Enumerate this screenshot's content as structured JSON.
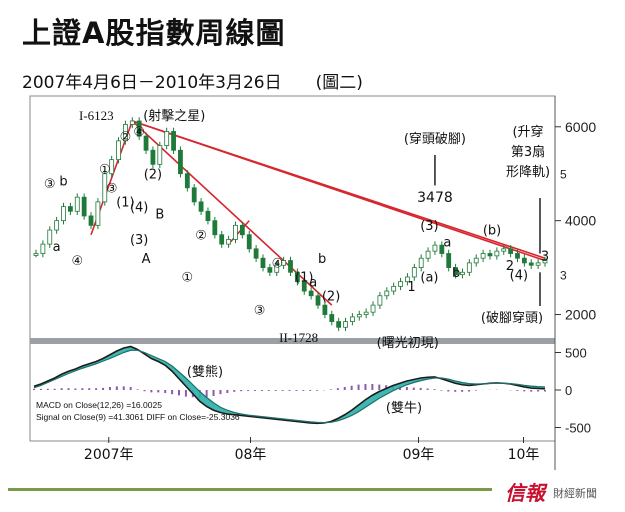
{
  "title": "上證A股指數周線圖",
  "subtitle": "2007年4月6日－2010年3月26日　　(圖二)",
  "brand": {
    "name": "信報",
    "sub": "財經新聞"
  },
  "colors": {
    "candle_up": "#1f7a3a",
    "trend_line": "#d6262e",
    "macd_fill": "#2bb0a8",
    "histogram": "#8e5aa8",
    "panel_bg": "#ffffff",
    "divider": "#9aa0a6"
  },
  "chart_data": [
    {
      "type": "line",
      "title": "",
      "x_labels": [
        "2007年",
        "08年",
        "09年",
        "10年"
      ],
      "y_ticks": [
        2000,
        4000,
        6000
      ],
      "y_secondary_ticks": [
        3,
        5
      ],
      "ylim": [
        1500,
        6400
      ],
      "series": [
        {
          "name": "",
          "points": [
            [
              0,
              3300
            ],
            [
              1,
              3500
            ],
            [
              2,
              3800
            ],
            [
              3,
              4000
            ],
            [
              4,
              4300
            ],
            [
              5,
              4200
            ],
            [
              6,
              4500
            ],
            [
              7,
              4100
            ],
            [
              8,
              3900
            ],
            [
              9,
              4400
            ],
            [
              10,
              5000
            ],
            [
              11,
              5300
            ],
            [
              12,
              5700
            ],
            [
              13,
              6050
            ],
            [
              14,
              6123
            ],
            [
              15,
              5800
            ],
            [
              16,
              5500
            ],
            [
              17,
              5200
            ],
            [
              18,
              5600
            ],
            [
              19,
              5900
            ],
            [
              20,
              5500
            ],
            [
              21,
              5000
            ],
            [
              22,
              4700
            ],
            [
              23,
              4400
            ],
            [
              24,
              4200
            ],
            [
              25,
              4000
            ],
            [
              26,
              3700
            ],
            [
              27,
              3500
            ],
            [
              28,
              3600
            ],
            [
              29,
              3900
            ],
            [
              30,
              3700
            ],
            [
              31,
              3400
            ],
            [
              32,
              3200
            ],
            [
              33,
              3000
            ],
            [
              34,
              2900
            ],
            [
              35,
              3050
            ],
            [
              36,
              3150
            ],
            [
              37,
              2900
            ],
            [
              38,
              2700
            ],
            [
              39,
              2500
            ],
            [
              40,
              2400
            ],
            [
              41,
              2200
            ],
            [
              42,
              2000
            ],
            [
              43,
              1850
            ],
            [
              44,
              1728
            ],
            [
              45,
              1850
            ],
            [
              46,
              1950
            ],
            [
              47,
              2000
            ],
            [
              48,
              2050
            ],
            [
              49,
              2200
            ],
            [
              50,
              2400
            ],
            [
              51,
              2500
            ],
            [
              52,
              2600
            ],
            [
              53,
              2700
            ],
            [
              54,
              2800
            ],
            [
              55,
              3000
            ],
            [
              56,
              3200
            ],
            [
              57,
              3350
            ],
            [
              58,
              3478
            ],
            [
              59,
              3300
            ],
            [
              60,
              3000
            ],
            [
              61,
              2850
            ],
            [
              62,
              2900
            ],
            [
              63,
              3100
            ],
            [
              64,
              3200
            ],
            [
              65,
              3300
            ],
            [
              66,
              3250
            ],
            [
              67,
              3350
            ],
            [
              68,
              3400
            ],
            [
              69,
              3300
            ],
            [
              70,
              3200
            ],
            [
              71,
              3100
            ],
            [
              72,
              3050
            ],
            [
              73,
              3100
            ],
            [
              74,
              3150
            ]
          ]
        }
      ],
      "annotations": {
        "peak": "I-6123",
        "peak_note": "(射擊之星)",
        "trough": "II-1728",
        "trough_note": "(曙光初現)",
        "breakdown": "(穿頭破腳)",
        "breakdown_value": "3478",
        "wedge_note_1": "(升穿",
        "wedge_note_2": "第3扇",
        "wedge_note_3": "形降軌)",
        "bottom_right": "(破腳穿頭)",
        "waves": [
          "③",
          "b",
          "a",
          "④",
          "①",
          "②",
          "③",
          "④",
          "(2)",
          "(1)",
          "(4)",
          "(3)",
          "B",
          "A",
          "①",
          "②",
          "③",
          "④",
          "(1)",
          "b",
          "a",
          "(2)",
          "1",
          "(3)",
          "a",
          "(a)",
          "b",
          "(b)",
          "2",
          "(4)",
          "3"
        ]
      }
    },
    {
      "type": "line",
      "title": "",
      "y_ticks": [
        500,
        0,
        -500
      ],
      "ylim": [
        -600,
        600
      ],
      "macd_label": "MACD on Close(12,26) =16.0025",
      "signal_label": "Signal on Close(9) =41.3061  DIFF on Close=-25.3036",
      "pattern_top": "(雙熊)",
      "pattern_bottom": "(雙牛)",
      "series": [
        {
          "name": "",
          "values": [
            50,
            80,
            120,
            160,
            210,
            250,
            280,
            320,
            350,
            380,
            420,
            470,
            520,
            560,
            580,
            540,
            480,
            420,
            380,
            330,
            250,
            150,
            50,
            -50,
            -150,
            -220,
            -270,
            -300,
            -320,
            -330,
            -340,
            -350,
            -360,
            -370,
            -380,
            -390,
            -400,
            -410,
            -420,
            -430,
            -440,
            -445,
            -440,
            -420,
            -380,
            -330,
            -270,
            -200,
            -130,
            -70,
            -20,
            20,
            60,
            90,
            120,
            140,
            160,
            170,
            175,
            150,
            120,
            90,
            70,
            60,
            70,
            80,
            90,
            95,
            90,
            80,
            60,
            40,
            25,
            20,
            16
          ]
        },
        {
          "name": "",
          "values": [
            30,
            60,
            100,
            140,
            180,
            220,
            255,
            290,
            320,
            350,
            385,
            420,
            460,
            500,
            530,
            530,
            500,
            460,
            420,
            380,
            320,
            240,
            160,
            70,
            -20,
            -100,
            -170,
            -230,
            -270,
            -300,
            -320,
            -335,
            -345,
            -355,
            -365,
            -375,
            -385,
            -395,
            -405,
            -415,
            -425,
            -432,
            -435,
            -430,
            -410,
            -380,
            -340,
            -290,
            -230,
            -170,
            -110,
            -60,
            -10,
            30,
            70,
            100,
            125,
            145,
            160,
            160,
            145,
            120,
            100,
            85,
            80,
            82,
            86,
            90,
            90,
            85,
            75,
            62,
            52,
            45,
            41
          ]
        }
      ]
    }
  ]
}
